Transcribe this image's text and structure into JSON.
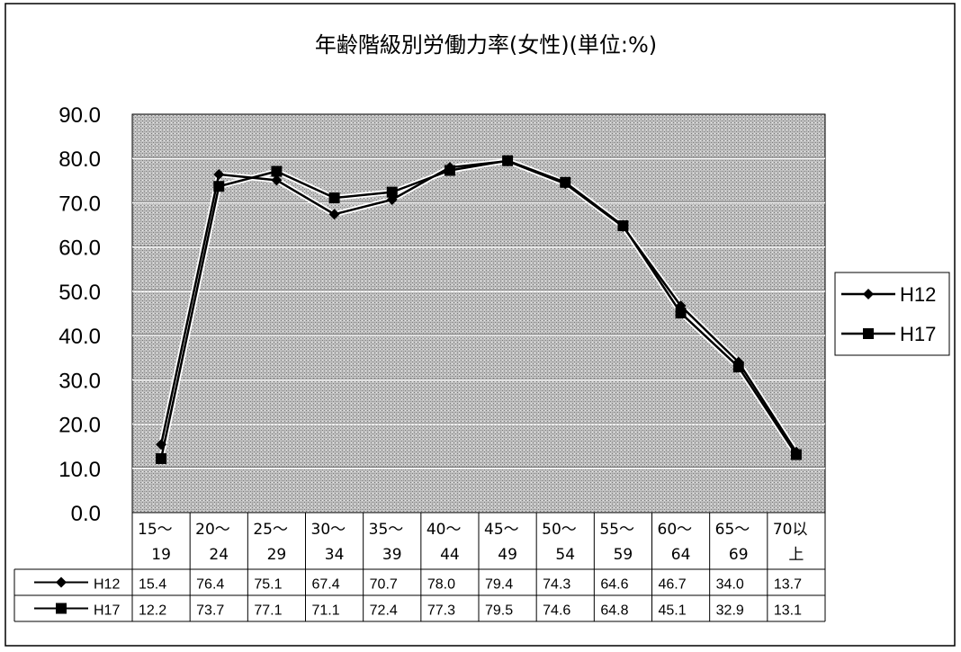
{
  "chart_data": {
    "type": "line",
    "title": "年齢階級別労働力率(女性)(単位:%)",
    "xlabel": "",
    "ylabel": "",
    "ylim": [
      0,
      90
    ],
    "yticks": [
      "0.0",
      "10.0",
      "20.0",
      "30.0",
      "40.0",
      "50.0",
      "60.0",
      "70.0",
      "80.0",
      "90.0"
    ],
    "grid": true,
    "legend_position": "right",
    "categories": [
      [
        "15～",
        "19"
      ],
      [
        "20～",
        "24"
      ],
      [
        "25～",
        "29"
      ],
      [
        "30～",
        "34"
      ],
      [
        "35～",
        "39"
      ],
      [
        "40～",
        "44"
      ],
      [
        "45～",
        "49"
      ],
      [
        "50～",
        "54"
      ],
      [
        "55～",
        "59"
      ],
      [
        "60～",
        "64"
      ],
      [
        "65～",
        "69"
      ],
      [
        "70以",
        "上"
      ]
    ],
    "series": [
      {
        "name": "H12",
        "marker": "diamond",
        "values": [
          15.4,
          76.4,
          75.1,
          67.4,
          70.7,
          78.0,
          79.4,
          74.3,
          64.6,
          46.7,
          34.0,
          13.7
        ],
        "labels": [
          "15.4",
          "76.4",
          "75.1",
          "67.4",
          "70.7",
          "78.0",
          "79.4",
          "74.3",
          "64.6",
          "46.7",
          "34.0",
          "13.7"
        ]
      },
      {
        "name": "H17",
        "marker": "square",
        "values": [
          12.2,
          73.7,
          77.1,
          71.1,
          72.4,
          77.3,
          79.5,
          74.6,
          64.8,
          45.1,
          32.9,
          13.1
        ],
        "labels": [
          "12.2",
          "73.7",
          "77.1",
          "71.1",
          "72.4",
          "77.3",
          "79.5",
          "74.6",
          "64.8",
          "45.1",
          "32.9",
          "13.1"
        ]
      }
    ],
    "colors": {
      "line": "#000000",
      "plot_area": "#b4b4b4",
      "gridline": "#ffffff",
      "background": "#ffffff"
    }
  }
}
